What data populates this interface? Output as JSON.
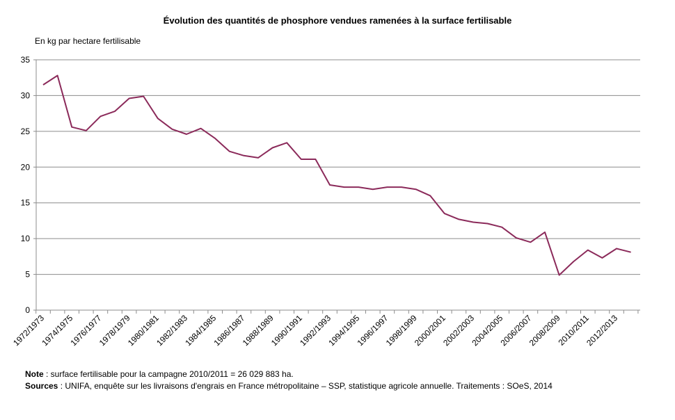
{
  "chart_data": {
    "type": "line",
    "title": "Évolution des quantités de phosphore vendues ramenées à la surface fertilisable",
    "ylabel": "En kg par hectare fertilisable",
    "xlabel": "",
    "ylim": [
      0,
      35
    ],
    "yticks": [
      0,
      5,
      10,
      15,
      20,
      25,
      30,
      35
    ],
    "grid": true,
    "legend": "none",
    "line_color": "#8B2A5A",
    "x": [
      "1972/1973",
      "1973/1974",
      "1974/1975",
      "1975/1976",
      "1976/1977",
      "1977/1978",
      "1978/1979",
      "1979/1980",
      "1980/1981",
      "1981/1982",
      "1982/1983",
      "1983/1984",
      "1984/1985",
      "1985/1986",
      "1986/1987",
      "1987/1988",
      "1988/1989",
      "1989/1990",
      "1990/1991",
      "1991/1992",
      "1992/1993",
      "1993/1994",
      "1994/1995",
      "1995/1996",
      "1996/1997",
      "1997/1998",
      "1998/1999",
      "1999/2000",
      "2000/2001",
      "2001/2002",
      "2002/2003",
      "2003/2004",
      "2004/2005",
      "2005/2006",
      "2006/2007",
      "2007/2008",
      "2008/2009",
      "2009/2010",
      "2010/2011",
      "2011/2012",
      "2012/2013",
      "2013/2014"
    ],
    "xtick_labels": [
      "1972/1973",
      "1974/1975",
      "1976/1977",
      "1978/1979",
      "1980/1981",
      "1982/1983",
      "1984/1985",
      "1986/1987",
      "1988/1989",
      "1990/1991",
      "1992/1993",
      "1994/1995",
      "1996/1997",
      "1998/1999",
      "2000/2001",
      "2002/2003",
      "2004/2005",
      "2006/2007",
      "2008/2009",
      "2010/2011",
      "2012/2013"
    ],
    "series": [
      {
        "values": [
          31.5,
          32.8,
          25.6,
          25.1,
          27.1,
          27.8,
          29.6,
          29.9,
          26.8,
          25.3,
          24.6,
          25.4,
          24.0,
          22.2,
          21.6,
          21.3,
          22.7,
          23.4,
          21.1,
          21.1,
          17.5,
          17.2,
          17.2,
          16.9,
          17.2,
          17.2,
          16.9,
          16.0,
          13.5,
          12.7,
          12.3,
          12.1,
          11.6,
          10.1,
          9.5,
          10.9,
          4.9,
          6.8,
          8.4,
          7.3,
          8.6,
          8.1
        ]
      }
    ]
  },
  "notes": {
    "note_label": "Note",
    "note_text": " : surface fertilisable pour la campagne 2010/2011 = 26 029 883 ha.",
    "sources_label": "Sources",
    "sources_text": " : UNIFA, enquête sur les livraisons d'engrais en France métropolitaine – SSP, statistique agricole annuelle. Traitements : SOeS, 2014"
  }
}
